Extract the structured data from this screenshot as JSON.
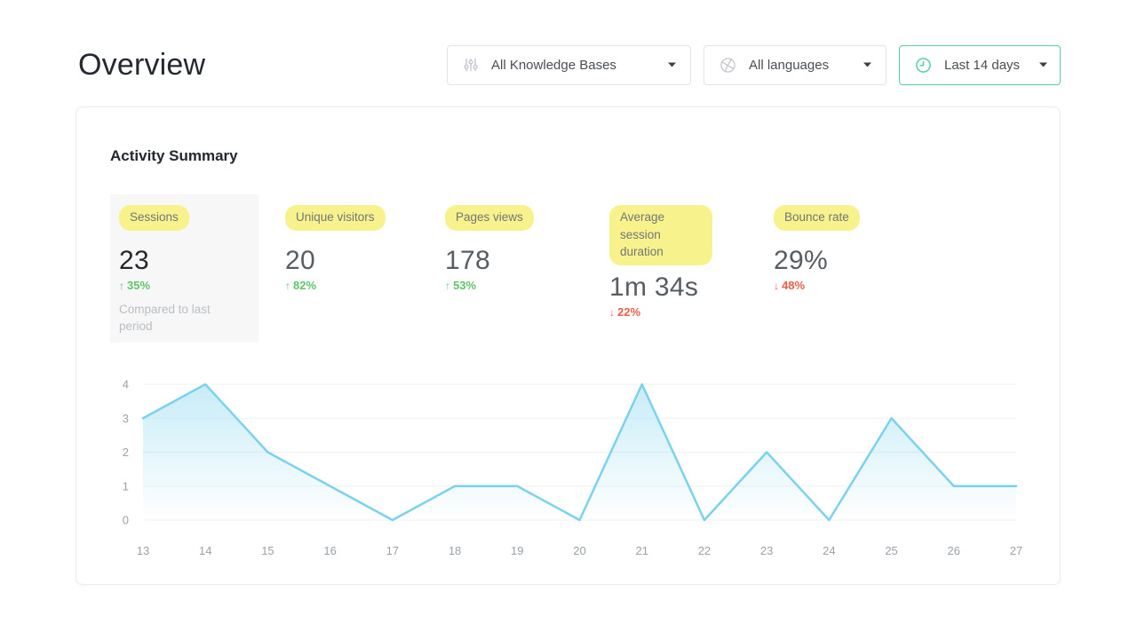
{
  "page": {
    "title": "Overview"
  },
  "filters": {
    "knowledge_bases": {
      "label": "All Knowledge Bases",
      "icon": "sliders-icon"
    },
    "languages": {
      "label": "All languages",
      "icon": "globe-icon"
    },
    "date_range": {
      "label": "Last 14 days",
      "icon": "clock-icon",
      "accent_color": "#55cfa2"
    }
  },
  "card": {
    "title": "Activity Summary"
  },
  "metrics": [
    {
      "label": "Sessions",
      "value": "23",
      "arrow": "↑",
      "delta": "35%",
      "direction": "up",
      "note": "Compared to last period",
      "selected": true
    },
    {
      "label": "Unique visitors",
      "value": "20",
      "arrow": "↑",
      "delta": "82%",
      "direction": "up"
    },
    {
      "label": "Pages views",
      "value": "178",
      "arrow": "↑",
      "delta": "53%",
      "direction": "up"
    },
    {
      "label": "Average session duration",
      "value": "1m 34s",
      "arrow": "↓",
      "delta": "22%",
      "direction": "down"
    },
    {
      "label": "Bounce rate",
      "value": "29%",
      "arrow": "↓",
      "delta": "48%",
      "direction": "down"
    }
  ],
  "chart_data": {
    "type": "area",
    "title": "",
    "x": [
      13,
      14,
      15,
      16,
      17,
      18,
      19,
      20,
      21,
      22,
      23,
      24,
      25,
      26,
      27
    ],
    "values": [
      3,
      4,
      2,
      1,
      0,
      1,
      1,
      0,
      4,
      0,
      2,
      0,
      3,
      1,
      1
    ],
    "yticks": [
      0,
      1,
      2,
      3,
      4
    ],
    "ylim": [
      0,
      4
    ],
    "grid": true,
    "legend": "none",
    "line_color": "#7bd2ee",
    "fill_opacity_top": 0.42,
    "fill_opacity_bottom": 0
  },
  "colors": {
    "highlight_pill": "#f7f28c",
    "positive": "#5ec46a",
    "negative": "#f25c4a",
    "date_accent": "#55cfa2",
    "grid_line": "#f1f1f2",
    "axis_label": "#9aa1a8"
  }
}
